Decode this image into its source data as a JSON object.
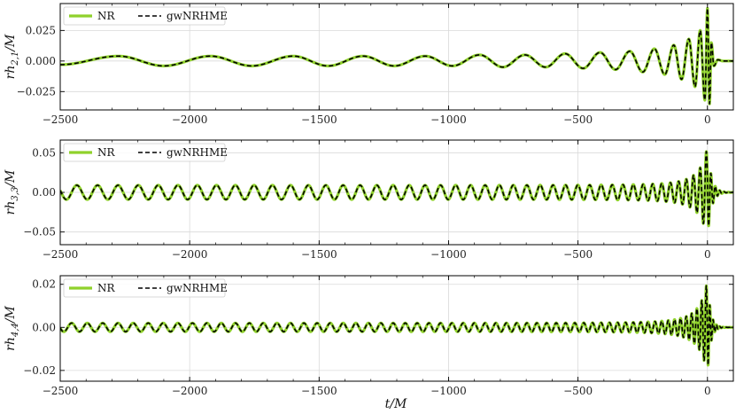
{
  "figure": {
    "xlabel": "t/M",
    "colors": {
      "nr": "#8fd12b",
      "model": "#000000",
      "grid": "#d9d9d9",
      "frame": "#000000"
    },
    "legend": {
      "placement": "top-left",
      "entries": [
        "NR",
        "gwNRHME"
      ]
    }
  },
  "chart_data": [
    {
      "type": "line",
      "ylabel": "rh_{2,1}/M",
      "xlim": [
        -2500,
        100
      ],
      "ylim": [
        -0.04,
        0.047
      ],
      "xticks": [
        -2500,
        -2000,
        -1500,
        -1000,
        -500,
        0
      ],
      "xtick_labels": [
        "−2500",
        "−2000",
        "−1500",
        "−1000",
        "−500",
        "0"
      ],
      "yticks": [
        0.025,
        0.0,
        -0.025
      ],
      "ytick_labels": [
        "0.025",
        "0.000",
        "−0.025"
      ],
      "grid": true,
      "series": [
        {
          "name": "NR",
          "style": "solid",
          "x": [
            -2500,
            -2275,
            -2100,
            -1920,
            -1760,
            -1600,
            -1465,
            -1330,
            -1210,
            -1090,
            -985,
            -880,
            -790,
            -705,
            -625,
            -550,
            -480,
            -415,
            -355,
            -300,
            -250,
            -205,
            -165,
            -130,
            -100,
            -72,
            -48,
            -28,
            -10,
            0,
            8,
            15,
            25,
            40,
            60,
            100
          ],
          "y": [
            -0.003,
            0.004,
            -0.004,
            0.004,
            -0.004,
            0.004,
            -0.004,
            0.004,
            -0.004,
            0.004,
            -0.004,
            0.005,
            -0.005,
            0.005,
            -0.005,
            0.006,
            -0.006,
            0.007,
            -0.007,
            0.008,
            -0.009,
            0.01,
            -0.011,
            0.013,
            -0.015,
            0.018,
            -0.021,
            0.025,
            -0.032,
            0.043,
            -0.035,
            0.015,
            -0.004,
            0.001,
            0.0,
            0.0
          ]
        },
        {
          "name": "gwNRHME",
          "style": "dashed",
          "x": [
            -2500,
            -2275,
            -2100,
            -1920,
            -1760,
            -1600,
            -1465,
            -1330,
            -1210,
            -1090,
            -985,
            -880,
            -790,
            -705,
            -625,
            -550,
            -480,
            -415,
            -355,
            -300,
            -250,
            -205,
            -165,
            -130,
            -100,
            -72,
            -48,
            -28,
            -10,
            0,
            8,
            15,
            25,
            40,
            60,
            100
          ],
          "y": [
            -0.003,
            0.004,
            -0.004,
            0.004,
            -0.004,
            0.004,
            -0.004,
            0.004,
            -0.004,
            0.004,
            -0.004,
            0.005,
            -0.005,
            0.005,
            -0.005,
            0.006,
            -0.006,
            0.007,
            -0.007,
            0.008,
            -0.009,
            0.01,
            -0.011,
            0.013,
            -0.015,
            0.018,
            -0.021,
            0.025,
            -0.032,
            0.043,
            -0.035,
            0.015,
            -0.004,
            0.001,
            0.0,
            0.0
          ]
        }
      ]
    },
    {
      "type": "line",
      "ylabel": "rh_{3,3}/M",
      "xlim": [
        -2500,
        100
      ],
      "ylim": [
        -0.066,
        0.066
      ],
      "xticks": [
        -2500,
        -2000,
        -1500,
        -1000,
        -500,
        0
      ],
      "xtick_labels": [
        "−2500",
        "−2000",
        "−1500",
        "−1000",
        "−500",
        "0"
      ],
      "yticks": [
        0.05,
        0.0,
        -0.05
      ],
      "ytick_labels": [
        "0.05",
        "0.00",
        "−0.05"
      ],
      "grid": true,
      "series": [
        {
          "name": "NR",
          "style": "solid",
          "oscillation": {
            "t_merger": 0,
            "cycles_in_window": 45,
            "amp_early": 0.009,
            "amp_peak": 0.058,
            "ringdown_decay": 15
          }
        },
        {
          "name": "gwNRHME",
          "style": "dashed",
          "oscillation": {
            "t_merger": 0,
            "cycles_in_window": 45,
            "amp_early": 0.009,
            "amp_peak": 0.058,
            "ringdown_decay": 15
          }
        }
      ]
    },
    {
      "type": "line",
      "ylabel": "rh_{4,4}/M",
      "xlim": [
        -2500,
        100
      ],
      "ylim": [
        -0.025,
        0.024
      ],
      "xticks": [
        -2500,
        -2000,
        -1500,
        -1000,
        -500,
        0
      ],
      "xtick_labels": [
        "−2500",
        "−2000",
        "−1500",
        "−1000",
        "−500",
        "0"
      ],
      "yticks": [
        0.02,
        0.0,
        -0.02
      ],
      "ytick_labels": [
        "0.02",
        "0.00",
        "−0.02"
      ],
      "grid": true,
      "series": [
        {
          "name": "NR",
          "style": "solid",
          "oscillation": {
            "t_merger": 0,
            "cycles_in_window": 60,
            "amp_early": 0.002,
            "amp_peak": 0.022,
            "ringdown_decay": 12
          }
        },
        {
          "name": "gwNRHME",
          "style": "dashed",
          "oscillation": {
            "t_merger": 0,
            "cycles_in_window": 60,
            "amp_early": 0.002,
            "amp_peak": 0.022,
            "ringdown_decay": 12
          }
        }
      ]
    }
  ]
}
